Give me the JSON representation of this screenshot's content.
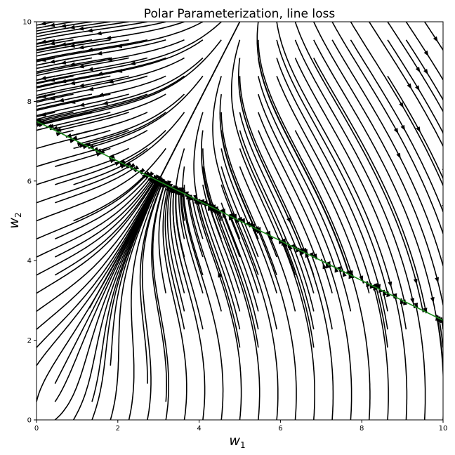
{
  "chart_data": {
    "type": "streamplot",
    "title": "Polar Parameterization, line loss",
    "xlabel": "w",
    "xlabel_sub": "1",
    "ylabel": "w",
    "ylabel_sub": "2",
    "xlim": [
      0,
      10
    ],
    "ylim": [
      0,
      10
    ],
    "xticks": [
      0,
      2,
      4,
      6,
      8,
      10
    ],
    "yticks": [
      0,
      2,
      4,
      6,
      8,
      10
    ],
    "grid": false,
    "stream_color": "#000000",
    "line_color": "#1a8a1a",
    "target_line": {
      "x": [
        0,
        10
      ],
      "y": [
        7.5,
        2.5
      ]
    },
    "separatrix": {
      "x": [
        1.3,
        2.0,
        3.0,
        4.0,
        4.6,
        5.0
      ],
      "y": [
        2.8,
        4.1,
        6.0,
        8.0,
        9.2,
        10.0
      ]
    }
  }
}
